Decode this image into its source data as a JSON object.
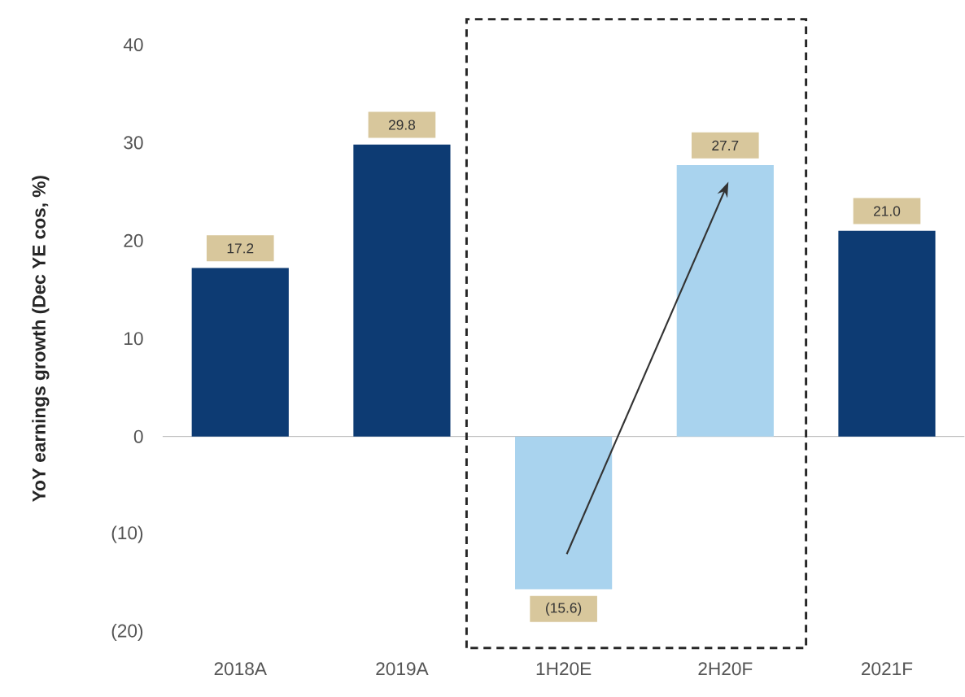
{
  "chart_data": {
    "type": "bar",
    "ylabel": "YoY earnings growth (Dec YE cos, %)",
    "categories": [
      "2018A",
      "2019A",
      "1H20E",
      "2H20F",
      "2021F"
    ],
    "values": [
      17.2,
      29.8,
      -15.6,
      27.7,
      21.0
    ],
    "colors": [
      "#0d3b73",
      "#0d3b73",
      "#a9d3ee",
      "#a9d3ee",
      "#0d3b73"
    ],
    "value_labels": [
      "17.2",
      "29.8",
      "(15.6)",
      "27.7",
      "21.0"
    ],
    "ylim": [
      -20,
      40
    ],
    "yticks": [
      {
        "value": -20,
        "label": "(20)"
      },
      {
        "value": -10,
        "label": "(10)"
      },
      0,
      10,
      20,
      30,
      40
    ]
  }
}
